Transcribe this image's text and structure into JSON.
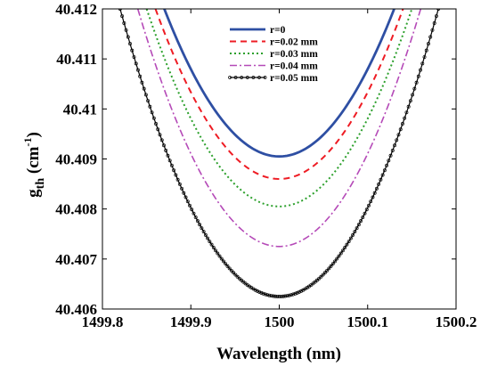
{
  "chart_data": {
    "type": "line",
    "xlabel": "Wavelength (nm)",
    "ylabel": {
      "main": "g",
      "sub": "th",
      "unit_open": " (cm",
      "unit_sup": "-1",
      "unit_close": ")"
    },
    "xlim": [
      1499.8,
      1500.2
    ],
    "ylim": [
      40.406,
      40.412
    ],
    "xticks": [
      1499.8,
      1499.9,
      1500,
      1500.1,
      1500.2
    ],
    "xtick_labels": [
      "1499.8",
      "1499.9",
      "1500",
      "1500.1",
      "1500.2"
    ],
    "yticks": [
      40.406,
      40.407,
      40.408,
      40.409,
      40.41,
      40.411,
      40.412
    ],
    "ytick_labels": [
      "40.406",
      "40.407",
      "40.408",
      "40.409",
      "40.41",
      "40.411",
      "40.412"
    ],
    "grid": false,
    "legend_position": "top-right",
    "series": [
      {
        "name": "r=0",
        "min_x": 1500,
        "min_y": 40.40905,
        "x_at_top": [
          1499.87,
          1500.13
        ],
        "color": "#2e4fa3",
        "style": "solid"
      },
      {
        "name": "r=0.02 mm",
        "min_x": 1500,
        "min_y": 40.4086,
        "x_at_top": [
          1499.86,
          1500.14
        ],
        "color": "#ee1c24",
        "style": "dashed"
      },
      {
        "name": "r=0.03 mm",
        "min_x": 1500,
        "min_y": 40.40805,
        "x_at_top": [
          1499.85,
          1500.15
        ],
        "color": "#2ca02c",
        "style": "dotted"
      },
      {
        "name": "r=0.04 mm",
        "min_x": 1500,
        "min_y": 40.40725,
        "x_at_top": [
          1499.84,
          1500.16
        ],
        "color": "#b54ab8",
        "style": "dashdot"
      },
      {
        "name": "r=0.05 mm",
        "min_x": 1500,
        "min_y": 40.40625,
        "x_at_top": [
          1499.82,
          1500.18
        ],
        "color": "#000000",
        "style": "dotted-marker"
      }
    ]
  }
}
